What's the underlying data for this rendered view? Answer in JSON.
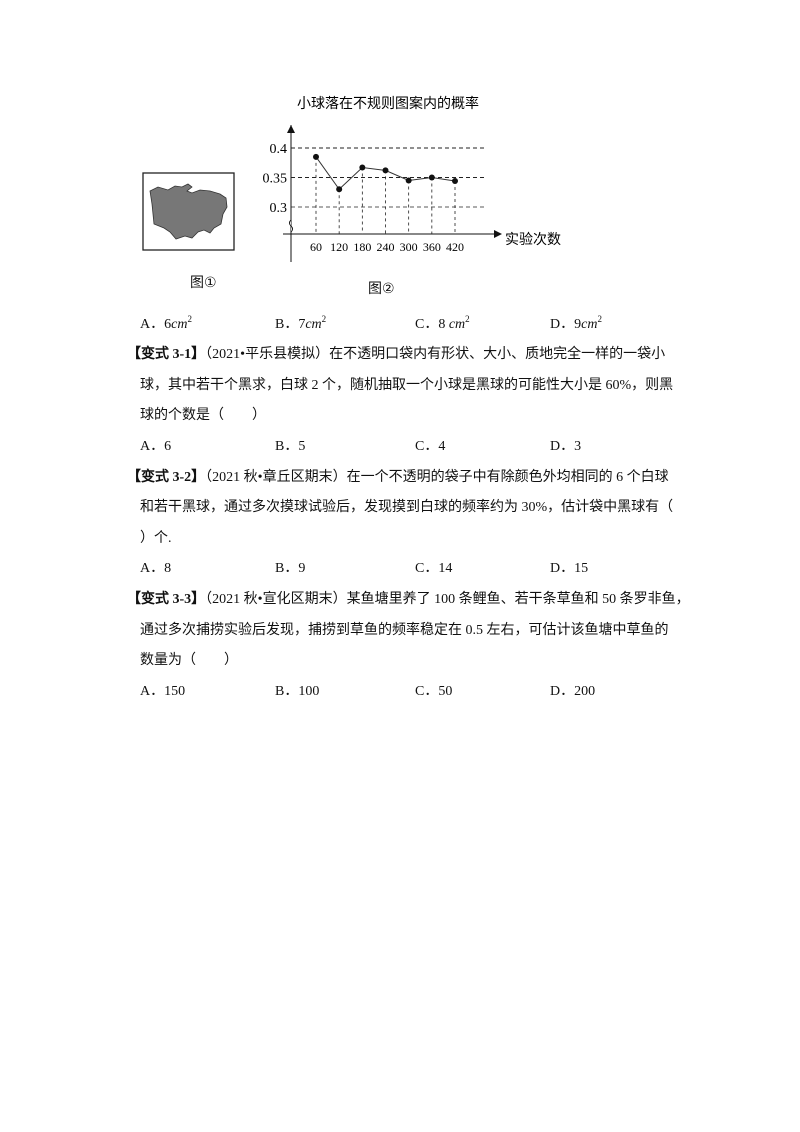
{
  "figure1": {
    "caption": "图①"
  },
  "figure2": {
    "caption": "图②"
  },
  "chart_data": {
    "type": "line",
    "title": "小球落在不规则图案内的概率",
    "xlabel": "实验次数",
    "ylabel": "",
    "x": [
      60,
      120,
      180,
      240,
      300,
      360,
      420
    ],
    "x_tick_labels": [
      "60",
      "120",
      "180",
      "240",
      "300",
      "360",
      "420"
    ],
    "y": [
      0.385,
      0.33,
      0.367,
      0.362,
      0.345,
      0.35,
      0.344
    ],
    "y_tick_labels": [
      "0.4",
      "0.35",
      "0.3"
    ],
    "y_ticks": [
      0.4,
      0.35,
      0.3
    ],
    "ylim": [
      0.3,
      0.4
    ],
    "grid": "dashed horizontal at ticks, dashed drop lines to points",
    "axis_break": true
  },
  "q_prev_options": [
    {
      "letter": "A．",
      "value": "6",
      "unit": "cm",
      "exp": "2"
    },
    {
      "letter": "B．",
      "value": "7",
      "unit": "cm",
      "exp": "2"
    },
    {
      "letter": "C．",
      "value": "8 ",
      "unit": "cm",
      "exp": "2"
    },
    {
      "letter": "D．",
      "value": "9",
      "unit": "cm",
      "exp": "2"
    }
  ],
  "questions": [
    {
      "tag": "【变式 3-1】",
      "lines": [
        "（2021•平乐县模拟）在不透明口袋内有形状、大小、质地完全一样的一袋小",
        "球，其中若干个黑求，白球 2 个，随机抽取一个小球是黑球的可能性大小是 60%，则黑",
        "球的个数是（　　）"
      ],
      "options": [
        "A．6",
        "B．5",
        "C．4",
        "D．3"
      ]
    },
    {
      "tag": "【变式 3-2】",
      "lines": [
        "（2021 秋•章丘区期末）在一个不透明的袋子中有除颜色外均相同的 6 个白球",
        "和若干黑球，通过多次摸球试验后，发现摸到白球的频率约为 30%，估计袋中黑球有（",
        "）个."
      ],
      "options": [
        "A．8",
        "B．9",
        "C．14",
        "D．15"
      ]
    },
    {
      "tag": "【变式 3-3】",
      "lines": [
        "（2021 秋•宣化区期末）某鱼塘里养了 100 条鲤鱼、若干条草鱼和 50 条罗非鱼，",
        "通过多次捕捞实验后发现，捕捞到草鱼的频率稳定在 0.5 左右，可估计该鱼塘中草鱼的",
        "数量为（　　）"
      ],
      "options": [
        "A．150",
        "B．100",
        "C．50",
        "D．200"
      ]
    }
  ]
}
